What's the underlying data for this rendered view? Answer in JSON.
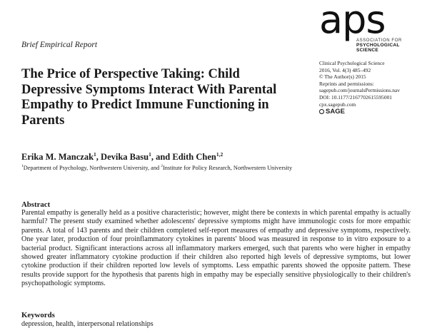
{
  "report_type": "Brief Empirical Report",
  "logo": {
    "mark": "aps",
    "line1": "ASSOCIATION FOR",
    "line2": "PSYCHOLOGICAL SCIENCE"
  },
  "title": "The Price of Perspective Taking: Child Depressive Symptoms Interact With Parental Empathy to Predict Immune Functioning in Parents",
  "journal_info": [
    "Clinical Psychological Science",
    "2016, Vol. 4(3) 485–492",
    "© The Author(s) 2015",
    "Reprints and permissions:",
    "sagepub.com/journalsPermissions.nav",
    "DOI: 10.1177/2167702615595001",
    "cpx.sagepub.com"
  ],
  "sage_label": "SAGE",
  "authors": [
    {
      "name": "Erika M. Manczak",
      "sup": "1",
      "sep": ", "
    },
    {
      "name": "Devika Basu",
      "sup": "1",
      "sep": ", and "
    },
    {
      "name": "Edith Chen",
      "sup": "1,2",
      "sep": ""
    }
  ],
  "affiliations": {
    "sup1": "1",
    "text1": "Department of Psychology, Northwestern University, and ",
    "sup2": "2",
    "text2": "Institute for Policy Research, Northwestern University"
  },
  "abstract": {
    "heading": "Abstract",
    "body": "Parental empathy is generally held as a positive characteristic; however, might there be contexts in which parental empathy is actually harmful? The present study examined whether adolescents' depressive symptoms might have immunologic costs for more empathic parents. A total of 143 parents and their children completed self-report measures of empathy and depressive symptoms, respectively. One year later, production of four proinflammatory cytokines in parents' blood was measured in response to in vitro exposure to a bacterial product. Significant interactions across all inflammatory markers emerged, such that parents who were higher in empathy showed greater inflammatory cytokine production if their children also reported high levels of depressive symptoms, but lower cytokine production if their children reported low levels of symptoms. Less empathic parents showed the opposite pattern. These results provide support for the hypothesis that parents high in empathy may be especially sensitive physiologically to their children's psychopathologic symptoms."
  },
  "keywords": {
    "heading": "Keywords",
    "body": "depression, health, interpersonal relationships"
  }
}
